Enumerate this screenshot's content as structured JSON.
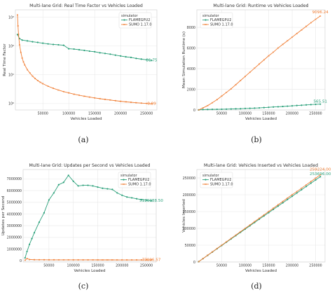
{
  "colors": {
    "flamegpu": "#2aa07a",
    "sumo": "#f07c31"
  },
  "chart_data": [
    {
      "id": "a",
      "type": "line",
      "caption": "(a)",
      "title": "Multi-lane Grid: Real Time Factor vs Vehicles Loaded",
      "xlabel": "Vehicles Loaded",
      "ylabel": "Real Time Factor",
      "yscale": "log",
      "xlim": [
        -3000,
        270000
      ],
      "ylim": [
        0.6,
        1800
      ],
      "xticks": [
        50000,
        100000,
        150000,
        200000,
        250000
      ],
      "xticklabels": [
        "50000",
        "100000",
        "150000",
        "200000",
        "250000"
      ],
      "yticks": [
        1,
        10,
        100,
        1000
      ],
      "yticklabels": [
        "10⁰",
        "10¹",
        "10²",
        "10³"
      ],
      "legend": {
        "title": "simulator",
        "position": "top-right"
      },
      "series": [
        {
          "name": "FLAMEGPU2",
          "color": "#2aa07a",
          "end_label": "31.75",
          "x": [
            1000,
            5000,
            10000,
            20000,
            30000,
            40000,
            50000,
            60000,
            70000,
            80000,
            90000,
            100000,
            110000,
            120000,
            130000,
            140000,
            150000,
            160000,
            170000,
            180000,
            190000,
            200000,
            210000,
            220000,
            230000,
            240000,
            250000,
            260000
          ],
          "y": [
            250,
            180,
            160,
            150,
            140,
            133,
            125,
            118,
            113,
            110,
            106,
            80,
            78,
            74,
            70,
            66,
            63,
            58,
            55,
            52,
            48,
            45,
            42,
            40,
            37,
            35,
            33,
            31.75
          ]
        },
        {
          "name": "SUMO 1.17.0",
          "color": "#f07c31",
          "end_label": "0.99",
          "x": [
            1000,
            2000,
            3000,
            5000,
            7500,
            10000,
            12500,
            15000,
            20000,
            25000,
            30000,
            35000,
            40000,
            45000,
            50000,
            60000,
            70000,
            80000,
            90000,
            100000,
            110000,
            120000,
            130000,
            140000,
            150000,
            160000,
            170000,
            180000,
            190000,
            200000,
            210000,
            220000,
            230000,
            240000,
            250000,
            260000
          ],
          "y": [
            1200,
            500,
            250,
            110,
            60,
            38,
            28,
            22,
            15,
            11.5,
            9,
            7.4,
            6.3,
            5.5,
            4.9,
            4,
            3.4,
            2.95,
            2.6,
            2.35,
            2.12,
            1.95,
            1.8,
            1.68,
            1.57,
            1.48,
            1.4,
            1.33,
            1.26,
            1.2,
            1.15,
            1.11,
            1.07,
            1.04,
            1.01,
            0.99
          ]
        }
      ]
    },
    {
      "id": "b",
      "type": "line",
      "caption": "(b)",
      "title": "Multi-lane Grid: Runtime vs Vehicles Loaded",
      "xlabel": "Vehicles Loaded",
      "ylabel": "Mean Simulation Runtime (s)",
      "yscale": "linear",
      "xlim": [
        -3000,
        270000
      ],
      "ylim": [
        0,
        9700
      ],
      "xticks": [
        50000,
        100000,
        150000,
        200000,
        250000
      ],
      "xticklabels": [
        "50000",
        "100000",
        "150000",
        "200000",
        "250000"
      ],
      "yticks": [
        0,
        2000,
        4000,
        6000,
        8000
      ],
      "yticklabels": [
        "0",
        "2000",
        "4000",
        "6000",
        "8000"
      ],
      "legend": {
        "title": "simulator",
        "position": "top-left"
      },
      "series": [
        {
          "name": "FLAMEGPU2",
          "color": "#2aa07a",
          "end_label": "565.51",
          "x": [
            1000,
            10000,
            20000,
            30000,
            40000,
            50000,
            60000,
            70000,
            80000,
            90000,
            100000,
            110000,
            120000,
            130000,
            140000,
            150000,
            160000,
            170000,
            180000,
            190000,
            200000,
            210000,
            220000,
            230000,
            240000,
            250000,
            260000
          ],
          "y": [
            10,
            40,
            50,
            60,
            65,
            70,
            80,
            95,
            110,
            120,
            150,
            160,
            180,
            200,
            230,
            260,
            290,
            310,
            340,
            370,
            400,
            430,
            460,
            490,
            520,
            545,
            565.51
          ]
        },
        {
          "name": "SUMO 1.17.0",
          "color": "#f07c31",
          "end_label": "9096.24",
          "x": [
            1000,
            10000,
            20000,
            30000,
            40000,
            50000,
            60000,
            70000,
            80000,
            90000,
            100000,
            110000,
            120000,
            130000,
            140000,
            150000,
            160000,
            170000,
            180000,
            190000,
            200000,
            210000,
            220000,
            230000,
            240000,
            250000,
            260000
          ],
          "y": [
            5,
            200,
            420,
            700,
            1000,
            1350,
            1700,
            2050,
            2450,
            2850,
            3250,
            3650,
            4050,
            4450,
            4850,
            5250,
            5600,
            6000,
            6350,
            6700,
            7050,
            7400,
            7750,
            8100,
            8450,
            8780,
            9096.24
          ]
        }
      ]
    },
    {
      "id": "c",
      "type": "line",
      "caption": "(c)",
      "title": "Multi-lane Grid: Updates per Second vs Vehicles Loaded",
      "xlabel": "Vehicles Loaded",
      "ylabel": "Updates per Second",
      "yscale": "linear",
      "xlim": [
        -3000,
        270000
      ],
      "ylim": [
        -100000,
        7800000
      ],
      "xticks": [
        50000,
        100000,
        150000,
        200000,
        250000
      ],
      "xticklabels": [
        "50000",
        "100000",
        "150000",
        "200000",
        "250000"
      ],
      "yticks": [
        0,
        1000000,
        2000000,
        3000000,
        4000000,
        5000000,
        6000000,
        7000000
      ],
      "yticklabels": [
        "0",
        "1000000",
        "2000000",
        "3000000",
        "4000000",
        "5000000",
        "6000000",
        "7000000"
      ],
      "legend": {
        "title": "simulator",
        "position": "top-right"
      },
      "series": [
        {
          "name": "FLAMEGPU2",
          "color": "#2aa07a",
          "end_label": "5126988.50",
          "x": [
            1000,
            5000,
            10000,
            15000,
            20000,
            30000,
            40000,
            50000,
            60000,
            70000,
            80000,
            90000,
            100000,
            110000,
            120000,
            130000,
            140000,
            150000,
            160000,
            170000,
            180000,
            190000,
            200000,
            210000,
            220000,
            230000,
            240000,
            250000,
            260000
          ],
          "y": [
            250000,
            800000,
            1400000,
            1900000,
            2400000,
            3300000,
            4100000,
            5200000,
            5800000,
            6500000,
            6700000,
            7300000,
            6800000,
            6400000,
            6450000,
            6450000,
            6400000,
            6300000,
            6200000,
            6150000,
            6100000,
            5800000,
            5600000,
            5450000,
            5380000,
            5300000,
            5230000,
            5180000,
            5126988.5
          ]
        },
        {
          "name": "SUMO 1.17.0",
          "color": "#f07c31",
          "end_label": "77006.57",
          "x": [
            1000,
            5000,
            10000,
            20000,
            30000,
            40000,
            50000,
            60000,
            70000,
            80000,
            90000,
            100000,
            110000,
            120000,
            130000,
            140000,
            150000,
            160000,
            170000,
            180000,
            190000,
            200000,
            210000,
            220000,
            230000,
            240000,
            250000,
            260000
          ],
          "y": [
            50000,
            190000,
            110000,
            95000,
            90000,
            88000,
            86000,
            85000,
            84000,
            83500,
            83000,
            82500,
            82000,
            81500,
            81000,
            80500,
            80000,
            79500,
            79000,
            78800,
            78600,
            78400,
            78200,
            78000,
            77700,
            77400,
            77200,
            77006.57
          ]
        }
      ]
    },
    {
      "id": "d",
      "type": "line",
      "caption": "(d)",
      "title": "Multi-lane Grid: Vehicles Inserted vs Vehicles Loaded",
      "xlabel": "Vehicles Loaded",
      "ylabel": "Vehicles Inserted",
      "yscale": "linear",
      "xlim": [
        -3000,
        270000
      ],
      "ylim": [
        0,
        275000
      ],
      "xticks": [
        50000,
        100000,
        150000,
        200000,
        250000
      ],
      "xticklabels": [
        "50000",
        "100000",
        "150000",
        "200000",
        "250000"
      ],
      "yticks": [
        0,
        50000,
        100000,
        150000,
        200000,
        250000
      ],
      "yticklabels": [
        "0",
        "50000",
        "100000",
        "150000",
        "200000",
        "250000"
      ],
      "legend": {
        "title": "simulator",
        "position": "top-left"
      },
      "series": [
        {
          "name": "FLAMEGPU2",
          "color": "#2aa07a",
          "end_label": "253696.00",
          "x": [
            1000,
            10000,
            20000,
            30000,
            40000,
            50000,
            60000,
            70000,
            80000,
            90000,
            100000,
            110000,
            120000,
            130000,
            140000,
            150000,
            160000,
            170000,
            180000,
            190000,
            200000,
            210000,
            220000,
            230000,
            240000,
            250000,
            260000
          ],
          "y": [
            980,
            9800,
            19600,
            29400,
            39200,
            49000,
            58800,
            68600,
            78300,
            88100,
            97900,
            107600,
            117400,
            127200,
            136900,
            146700,
            156400,
            166200,
            175900,
            185700,
            195400,
            205100,
            214900,
            224600,
            234300,
            244000,
            253696
          ]
        },
        {
          "name": "SUMO 1.17.0",
          "color": "#f07c31",
          "end_label": "259224.00",
          "x": [
            1000,
            10000,
            20000,
            30000,
            40000,
            50000,
            60000,
            70000,
            80000,
            90000,
            100000,
            110000,
            120000,
            130000,
            140000,
            150000,
            160000,
            170000,
            180000,
            190000,
            200000,
            210000,
            220000,
            230000,
            240000,
            250000,
            260000
          ],
          "y": [
            1000,
            10000,
            20000,
            30000,
            40000,
            50000,
            60000,
            70000,
            80000,
            90000,
            100000,
            110000,
            120000,
            130000,
            140000,
            150000,
            160000,
            170000,
            180000,
            190000,
            200000,
            209500,
            219400,
            229300,
            239300,
            249200,
            259224
          ]
        }
      ]
    }
  ]
}
